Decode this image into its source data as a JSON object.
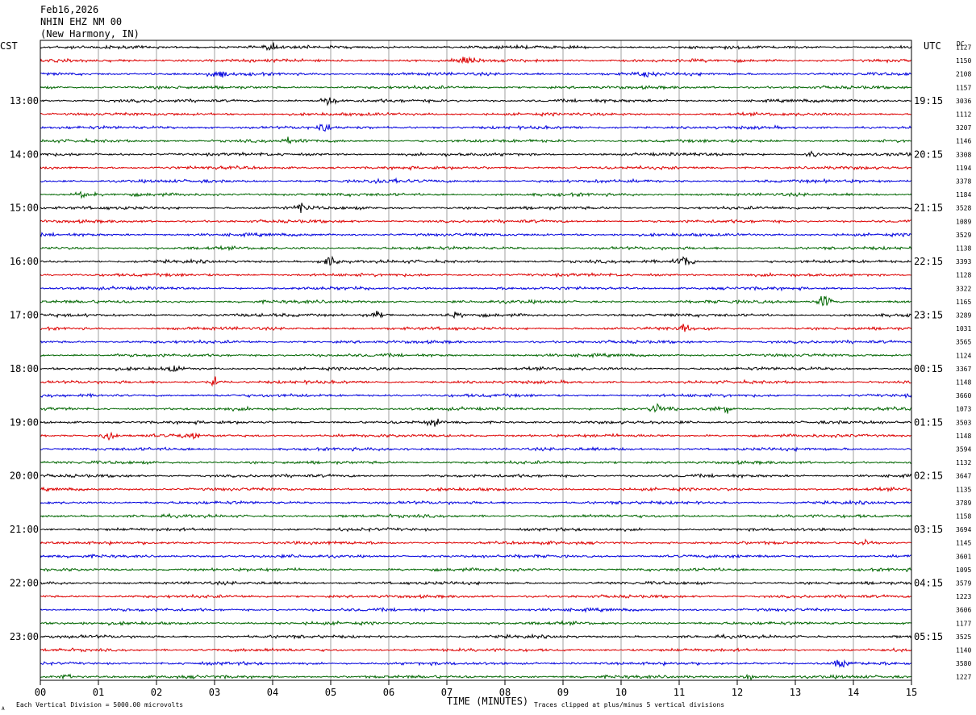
{
  "header": {
    "date": "Feb16,2026",
    "station": "NHIN EHZ NM 00",
    "location": "(New Harmony, IN)"
  },
  "labels": {
    "left_timezone": "CST",
    "right_timezone": "UTC",
    "dc_label": "DC",
    "xlabel": "TIME (MINUTES)",
    "footer_left": "Each Vertical Division = 5000.00 microvolts",
    "footer_right": "Traces clipped at plus/minus 5 vertical divisions",
    "footer_mark": "A"
  },
  "colors": {
    "trace_cycle": [
      "#000000",
      "#dd0000",
      "#0000dd",
      "#006600"
    ],
    "grid": "#888888",
    "frame": "#000000"
  },
  "chart_data": {
    "type": "line",
    "description_of_axes": "helicorder: rows of 15-minute traces",
    "xlim": [
      0,
      15
    ],
    "x_ticks": [
      "00",
      "01",
      "02",
      "03",
      "04",
      "05",
      "06",
      "07",
      "08",
      "09",
      "10",
      "11",
      "12",
      "13",
      "14",
      "15"
    ],
    "row_count": 48,
    "left_hour_labels": [
      "13:00",
      "14:00",
      "15:00",
      "16:00",
      "17:00",
      "18:00",
      "19:00",
      "20:00",
      "21:00",
      "22:00",
      "23:00"
    ],
    "right_hour_labels": [
      "19:15",
      "20:15",
      "21:15",
      "22:15",
      "23:15",
      "00:15",
      "01:15",
      "02:15",
      "03:15",
      "04:15",
      "05:15"
    ],
    "hour_label_rows": [
      4,
      8,
      12,
      16,
      20,
      24,
      28,
      32,
      36,
      40,
      44
    ],
    "dc_offsets": [
      "1127",
      "1150",
      "2108",
      "1157",
      "3036",
      "1112",
      "3207",
      "1146",
      "3308",
      "1194",
      "3378",
      "1184",
      "3528",
      "1089",
      "3529",
      "1138",
      "3393",
      "1128",
      "3322",
      "1165",
      "3289",
      "1031",
      "3565",
      "1124",
      "3367",
      "1148",
      "3660",
      "1073",
      "3503",
      "1148",
      "3594",
      "1132",
      "3647",
      "1135",
      "3789",
      "1158",
      "3694",
      "1145",
      "3601",
      "1095",
      "3579",
      "1223",
      "3606",
      "1177",
      "3525",
      "1140",
      "3580",
      "1227"
    ],
    "events": [
      {
        "row": 0,
        "minute": 4.0,
        "amp": 4
      },
      {
        "row": 1,
        "minute": 7.3,
        "amp": 6
      },
      {
        "row": 2,
        "minute": 3.1,
        "amp": 5
      },
      {
        "row": 2,
        "minute": 10.4,
        "amp": 5
      },
      {
        "row": 4,
        "minute": 5.0,
        "amp": 5
      },
      {
        "row": 6,
        "minute": 4.9,
        "amp": 6
      },
      {
        "row": 7,
        "minute": 4.3,
        "amp": 4
      },
      {
        "row": 8,
        "minute": 13.3,
        "amp": 4
      },
      {
        "row": 10,
        "minute": 6.0,
        "amp": 4
      },
      {
        "row": 11,
        "minute": 0.7,
        "amp": 5
      },
      {
        "row": 12,
        "minute": 4.5,
        "amp": 6
      },
      {
        "row": 16,
        "minute": 5.0,
        "amp": 6
      },
      {
        "row": 16,
        "minute": 11.1,
        "amp": 7
      },
      {
        "row": 19,
        "minute": 13.5,
        "amp": 6
      },
      {
        "row": 20,
        "minute": 5.8,
        "amp": 6
      },
      {
        "row": 20,
        "minute": 7.1,
        "amp": 4
      },
      {
        "row": 21,
        "minute": 11.1,
        "amp": 4
      },
      {
        "row": 24,
        "minute": 2.3,
        "amp": 4
      },
      {
        "row": 25,
        "minute": 3.0,
        "amp": 5
      },
      {
        "row": 27,
        "minute": 10.6,
        "amp": 5
      },
      {
        "row": 27,
        "minute": 11.8,
        "amp": 4
      },
      {
        "row": 28,
        "minute": 6.8,
        "amp": 4
      },
      {
        "row": 29,
        "minute": 2.6,
        "amp": 5
      },
      {
        "row": 29,
        "minute": 1.2,
        "amp": 4
      },
      {
        "row": 37,
        "minute": 14.2,
        "amp": 4
      },
      {
        "row": 46,
        "minute": 13.8,
        "amp": 5
      },
      {
        "row": 47,
        "minute": 0.5,
        "amp": 4
      },
      {
        "row": 47,
        "minute": 12.2,
        "amp": 3
      }
    ]
  }
}
